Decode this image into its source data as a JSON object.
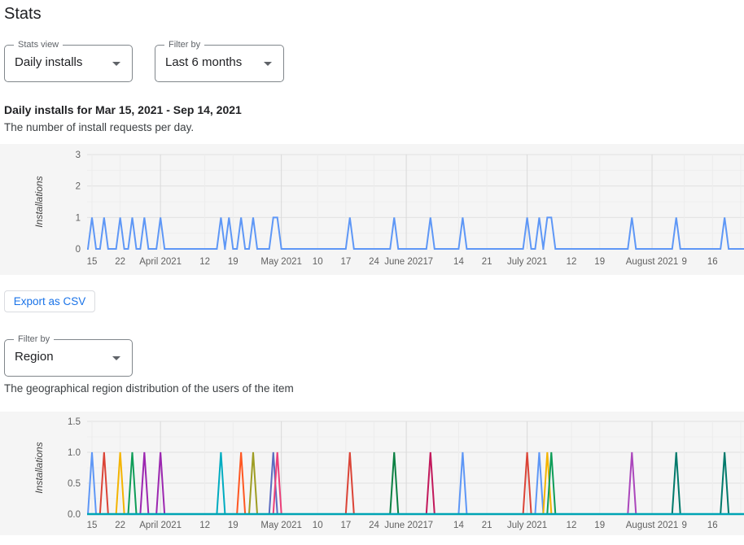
{
  "page_title": "Stats",
  "controls": {
    "stats_view": {
      "label": "Stats view",
      "value": "Daily installs"
    },
    "period_filter": {
      "label": "Filter by",
      "value": "Last 6 months"
    },
    "region_filter": {
      "label": "Filter by",
      "value": "Region"
    }
  },
  "sections": {
    "daily": {
      "heading": "Daily installs for Mar 15, 2021 - Sep 14, 2021",
      "description": "The number of install requests per day."
    },
    "region": {
      "description": "The geographical region distribution of the users of the item"
    }
  },
  "export_button_label": "Export as CSV",
  "colors": {
    "accent_blue": "#1a73e8",
    "chart_background": "#f5f5f5",
    "axis_text": "#616161",
    "major_gridline": "#e1e1e1",
    "minor_gridline": "#eeeeee",
    "month_gridline": "#d9d9d9",
    "week_gridline": "#ececec"
  },
  "chart_data": [
    {
      "type": "line",
      "name": "daily-installs",
      "ylabel": "Installations",
      "ylim": [
        0,
        3
      ],
      "y_ticks": [
        {
          "v": 0,
          "label": "0"
        },
        {
          "v": 1,
          "label": "1"
        },
        {
          "v": 2,
          "label": "2"
        },
        {
          "v": 3,
          "label": "3"
        }
      ],
      "minor_y_step": 0.5,
      "major_y_step": 1,
      "x_origin_date": "2021-03-15",
      "x_units": "days since origin",
      "x_ticks": [
        {
          "d": 0,
          "label": "15"
        },
        {
          "d": 7,
          "label": "22"
        },
        {
          "d": 17,
          "label": "April 2021",
          "month": true
        },
        {
          "d": 28,
          "label": "12"
        },
        {
          "d": 35,
          "label": "19"
        },
        {
          "d": 47,
          "label": "May 2021",
          "month": true
        },
        {
          "d": 56,
          "label": "10"
        },
        {
          "d": 63,
          "label": "17"
        },
        {
          "d": 70,
          "label": "24"
        },
        {
          "d": 78,
          "label": "June 2021",
          "month": true
        },
        {
          "d": 84,
          "label": "7"
        },
        {
          "d": 91,
          "label": "14"
        },
        {
          "d": 98,
          "label": "21"
        },
        {
          "d": 108,
          "label": "July 2021",
          "month": true
        },
        {
          "d": 119,
          "label": "12"
        },
        {
          "d": 126,
          "label": "19"
        },
        {
          "d": 139,
          "label": "August 2021",
          "month": true
        },
        {
          "d": 147,
          "label": "9"
        },
        {
          "d": 154,
          "label": "16"
        },
        {
          "d": 161,
          "label": ""
        }
      ],
      "series": [
        {
          "name": "installs",
          "color": "#5e97f6",
          "spike_value": 1,
          "spikes": [
            {
              "days": [
                0,
                0
              ],
              "date": "Mar 15"
            },
            {
              "days": [
                3,
                3
              ],
              "date": "Mar 18"
            },
            {
              "days": [
                7,
                7
              ],
              "date": "Mar 22"
            },
            {
              "days": [
                10,
                10
              ],
              "date": "Mar 25"
            },
            {
              "days": [
                13,
                13
              ],
              "date": "Mar 28"
            },
            {
              "days": [
                17,
                17
              ],
              "date": "Apr 1"
            },
            {
              "days": [
                32,
                32
              ],
              "date": "Apr 16"
            },
            {
              "days": [
                34,
                34
              ],
              "date": "Apr 18"
            },
            {
              "days": [
                37,
                37
              ],
              "date": "Apr 21"
            },
            {
              "days": [
                40,
                40
              ],
              "date": "Apr 24"
            },
            {
              "days": [
                45,
                46
              ],
              "date": "Apr 29-30"
            },
            {
              "days": [
                64,
                64
              ],
              "date": "May 18"
            },
            {
              "days": [
                75,
                75
              ],
              "date": "May 29"
            },
            {
              "days": [
                84,
                84
              ],
              "date": "Jun 7"
            },
            {
              "days": [
                92,
                92
              ],
              "date": "Jun 15"
            },
            {
              "days": [
                108,
                108
              ],
              "date": "Jul 1"
            },
            {
              "days": [
                111,
                111
              ],
              "date": "Jul 4"
            },
            {
              "days": [
                113,
                114
              ],
              "date": "Jul 6-7"
            },
            {
              "days": [
                134,
                134
              ],
              "date": "Jul 27"
            },
            {
              "days": [
                145,
                145
              ],
              "date": "Aug 7"
            },
            {
              "days": [
                157,
                157
              ],
              "date": "Aug 19"
            }
          ]
        }
      ]
    },
    {
      "type": "line",
      "name": "region-distribution",
      "ylabel": "Installations",
      "ylim": [
        0,
        1.5
      ],
      "y_ticks": [
        {
          "v": 0,
          "label": "0.0"
        },
        {
          "v": 0.5,
          "label": "0.5"
        },
        {
          "v": 1,
          "label": "1.0"
        },
        {
          "v": 1.5,
          "label": "1.5"
        }
      ],
      "minor_y_step": 0.25,
      "major_y_step": 0.5,
      "x_origin_date": "2021-03-15",
      "x_units": "days since origin",
      "baseline_color": "#00a4b4",
      "x_ticks": [
        {
          "d": 0,
          "label": "15"
        },
        {
          "d": 7,
          "label": "22"
        },
        {
          "d": 17,
          "label": "April 2021",
          "month": true
        },
        {
          "d": 28,
          "label": "12"
        },
        {
          "d": 35,
          "label": "19"
        },
        {
          "d": 47,
          "label": "May 2021",
          "month": true
        },
        {
          "d": 56,
          "label": "10"
        },
        {
          "d": 63,
          "label": "17"
        },
        {
          "d": 70,
          "label": "24"
        },
        {
          "d": 78,
          "label": "June 2021",
          "month": true
        },
        {
          "d": 84,
          "label": "7"
        },
        {
          "d": 91,
          "label": "14"
        },
        {
          "d": 98,
          "label": "21"
        },
        {
          "d": 108,
          "label": "July 2021",
          "month": true
        },
        {
          "d": 119,
          "label": "12"
        },
        {
          "d": 126,
          "label": "19"
        },
        {
          "d": 139,
          "label": "August 2021",
          "month": true
        },
        {
          "d": 147,
          "label": "9"
        },
        {
          "d": 154,
          "label": "16"
        },
        {
          "d": 161,
          "label": ""
        }
      ],
      "series": [
        {
          "color": "#5e97f6",
          "spike_value": 1,
          "days": [
            0,
            92,
            111
          ],
          "dates": "Mar 15, Jun 15, Jul 4"
        },
        {
          "color": "#db4437",
          "spike_value": 1,
          "days": [
            3,
            64,
            108
          ],
          "dates": "Mar 18, May 18, Jul 1"
        },
        {
          "color": "#f4b400",
          "spike_value": 1,
          "days": [
            7,
            113
          ],
          "dates": "Mar 22, Jul 6"
        },
        {
          "color": "#0f9d58",
          "spike_value": 1,
          "days": [
            10,
            114
          ],
          "dates": "Mar 25, Jul 7"
        },
        {
          "color": "#9c27b0",
          "spike_value": 1,
          "days": [
            13,
            17
          ],
          "dates": "Mar 28, Apr 1"
        },
        {
          "color": "#00acc1",
          "spike_value": 1,
          "days": [
            32
          ],
          "dates": "Apr 16"
        },
        {
          "color": "#ff5722",
          "spike_value": 1,
          "days": [
            37
          ],
          "dates": "Apr 21"
        },
        {
          "color": "#9e9d24",
          "spike_value": 1,
          "days": [
            40
          ],
          "dates": "Apr 24"
        },
        {
          "color": "#5c6bc0",
          "spike_value": 1,
          "days": [
            45
          ],
          "dates": "Apr 29"
        },
        {
          "color": "#ec407a",
          "spike_value": 1,
          "days": [
            46
          ],
          "dates": "Apr 30"
        },
        {
          "color": "#0b8043",
          "spike_value": 1,
          "days": [
            75
          ],
          "dates": "May 29"
        },
        {
          "color": "#c2185b",
          "spike_value": 1,
          "days": [
            84
          ],
          "dates": "Jun 7"
        },
        {
          "color": "#ab47bc",
          "spike_value": 1,
          "days": [
            134
          ],
          "dates": "Jul 27"
        },
        {
          "color": "#00796b",
          "spike_value": 1,
          "days": [
            145,
            157
          ],
          "dates": "Aug 7, Aug 19"
        }
      ]
    }
  ]
}
